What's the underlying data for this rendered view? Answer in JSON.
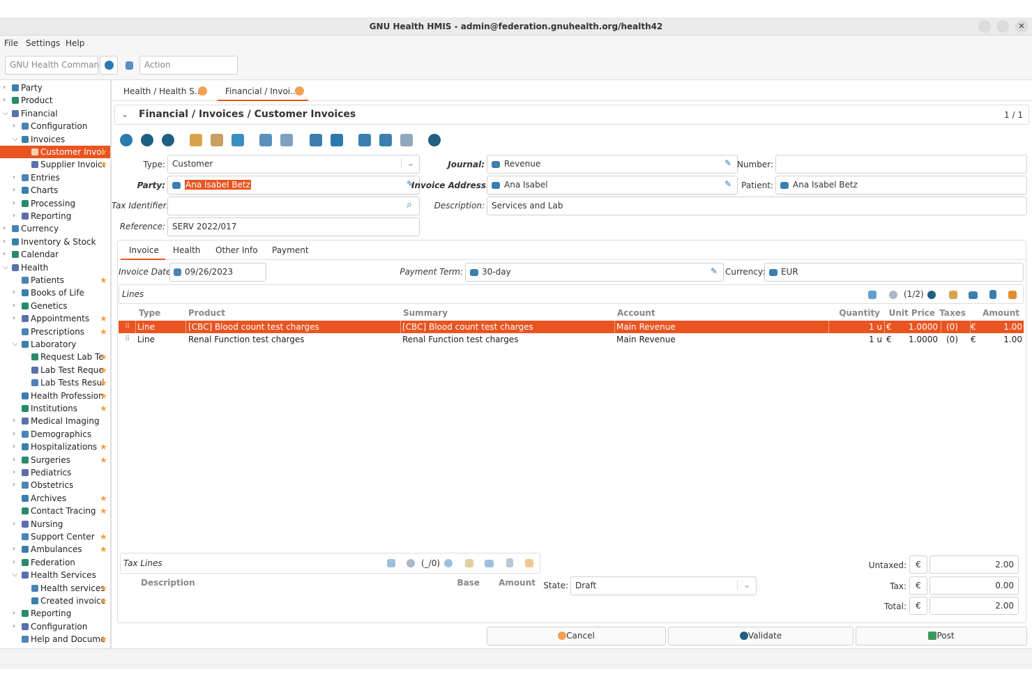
{
  "window": {
    "title": "GNU Health HMIS - admin@federation.gnuhealth.org/health42"
  },
  "menu": [
    "File",
    "Settings",
    "Help"
  ],
  "command": {
    "placeholder": "GNU Health Command",
    "action": "Action"
  },
  "sidebar": [
    {
      "label": "Party",
      "expandable": true
    },
    {
      "label": "Product",
      "expandable": true
    },
    {
      "label": "Financial",
      "children": [
        {
          "label": "Configuration",
          "expandable": true
        },
        {
          "label": "Invoices",
          "children": [
            {
              "label": "Customer Invoi",
              "favorite": true,
              "selected": true
            },
            {
              "label": "Supplier Invoice",
              "favorite": true
            }
          ]
        },
        {
          "label": "Entries",
          "expandable": true
        },
        {
          "label": "Charts",
          "expandable": true
        },
        {
          "label": "Processing",
          "expandable": true
        },
        {
          "label": "Reporting",
          "expandable": true
        }
      ]
    },
    {
      "label": "Currency",
      "expandable": true
    },
    {
      "label": "Inventory & Stock",
      "expandable": true
    },
    {
      "label": "Calendar",
      "expandable": true
    },
    {
      "label": "Health",
      "children": [
        {
          "label": "Patients",
          "favorite": true
        },
        {
          "label": "Books of Life",
          "expandable": true
        },
        {
          "label": "Genetics",
          "expandable": true
        },
        {
          "label": "Appointments",
          "expandable": true,
          "favorite": true
        },
        {
          "label": "Prescriptions",
          "favorite": true
        },
        {
          "label": "Laboratory",
          "children": [
            {
              "label": "Request Lab Te",
              "favorite": true
            },
            {
              "label": "Lab Test Reque",
              "favorite": true
            },
            {
              "label": "Lab Tests Resul",
              "favorite": true
            }
          ]
        },
        {
          "label": "Health Profession",
          "favorite": true
        },
        {
          "label": "Institutions",
          "favorite": true
        },
        {
          "label": "Medical Imaging",
          "expandable": true
        },
        {
          "label": "Demographics",
          "expandable": true
        },
        {
          "label": "Hospitalizations",
          "expandable": true,
          "favorite": true
        },
        {
          "label": "Surgeries",
          "expandable": true,
          "favorite": true
        },
        {
          "label": "Pediatrics",
          "expandable": true
        },
        {
          "label": "Obstetrics",
          "expandable": true
        },
        {
          "label": "Archives",
          "favorite": true
        },
        {
          "label": "Contact Tracing",
          "favorite": true
        },
        {
          "label": "Nursing",
          "expandable": true
        },
        {
          "label": "Support Center",
          "favorite": true
        },
        {
          "label": "Ambulances",
          "expandable": true,
          "favorite": true
        },
        {
          "label": "Federation",
          "expandable": true
        },
        {
          "label": "Health Services",
          "children": [
            {
              "label": "Health services",
              "favorite": true
            },
            {
              "label": "Created invoice",
              "favorite": true
            }
          ]
        },
        {
          "label": "Reporting",
          "expandable": true
        },
        {
          "label": "Configuration",
          "expandable": true
        },
        {
          "label": "Help and Documer",
          "favorite": true
        }
      ]
    }
  ],
  "tabs": [
    "Health / Health S...",
    "Financial / Invoi..."
  ],
  "header": {
    "title": "Financial / Invoices / Customer Invoices",
    "record": "1 / 1"
  },
  "form": {
    "type": {
      "label": "Type:",
      "value": "Customer"
    },
    "journal": {
      "label": "Journal:",
      "value": "Revenue"
    },
    "number": {
      "label": "Number:"
    },
    "party": {
      "label": "Party:",
      "value": "Ana Isabel Betz"
    },
    "invoice_address": {
      "label": "Invoice Address:",
      "value": "Ana Isabel"
    },
    "patient": {
      "label": "Patient:",
      "value": "Ana Isabel Betz"
    },
    "tax_identifier": {
      "label": "Tax Identifier:"
    },
    "description": {
      "label": "Description:",
      "value": "Services and Lab"
    },
    "reference": {
      "label": "Reference:",
      "value": "SERV 2022/017"
    }
  },
  "subtabs": [
    "Invoice",
    "Health",
    "Other Info",
    "Payment"
  ],
  "invoice": {
    "invoice_date": {
      "label": "Invoice Date:",
      "value": "09/26/2023"
    },
    "payment_term": {
      "label": "Payment Term:",
      "value": "30-day"
    },
    "currency": {
      "label": "Currency:",
      "value": "EUR"
    }
  },
  "lines": {
    "title": "Lines",
    "pager": "(1/2)",
    "columns": [
      "Type",
      "Product",
      "Summary",
      "Account",
      "Quantity",
      "Unit Price",
      "Taxes",
      "Amount"
    ],
    "rows": [
      {
        "selected": true,
        "cells": [
          "Line",
          "[CBC] Blood count test charges",
          "[CBC] Blood count test charges",
          "Main Revenue",
          "1 u",
          "€",
          "1.0000",
          "(0)",
          "€",
          "1.00"
        ]
      },
      {
        "cells": [
          "Line",
          "Renal Function test charges",
          "Renal Function test charges",
          "Main Revenue",
          "1 u",
          "€",
          "1.0000",
          "(0)",
          "€",
          "1.00"
        ]
      }
    ]
  },
  "tax_lines": {
    "title": "Tax Lines",
    "pager": "(_/0)",
    "columns": [
      "Description",
      "Base",
      "Amount"
    ]
  },
  "state": {
    "label": "State:",
    "value": "Draft"
  },
  "totals": [
    {
      "label": "Untaxed:",
      "currency": "€",
      "value": "2.00"
    },
    {
      "label": "Tax:",
      "currency": "€",
      "value": "0.00"
    },
    {
      "label": "Total:",
      "currency": "€",
      "value": "2.00"
    }
  ],
  "buttons": [
    "Cancel",
    "Validate",
    "Post"
  ]
}
